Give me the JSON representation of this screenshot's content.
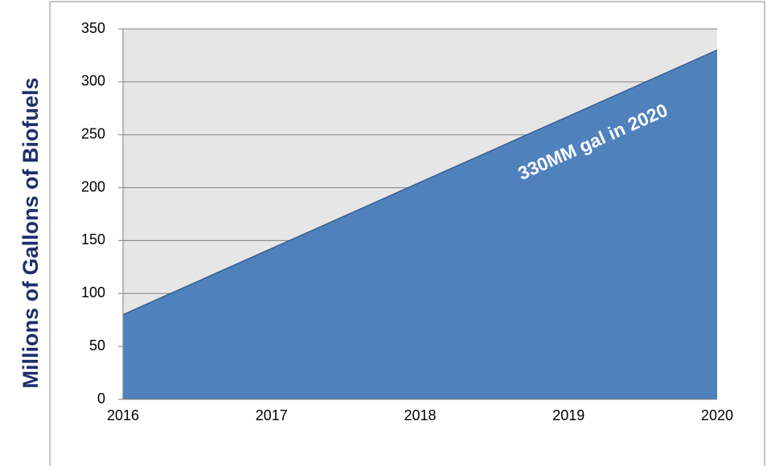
{
  "chart_data": {
    "type": "area",
    "y_label": "Millions of Gallons of Biofuels",
    "annotation": "330MM gal in 2020",
    "categories": [
      "2016",
      "2017",
      "2018",
      "2019",
      "2020"
    ],
    "values": [
      80,
      142.5,
      205,
      267.5,
      330
    ],
    "color": "#4f81bd",
    "ylim": [
      0,
      350
    ],
    "yticks": [
      0,
      50,
      100,
      150,
      200,
      250,
      300,
      350
    ],
    "grid": true
  }
}
